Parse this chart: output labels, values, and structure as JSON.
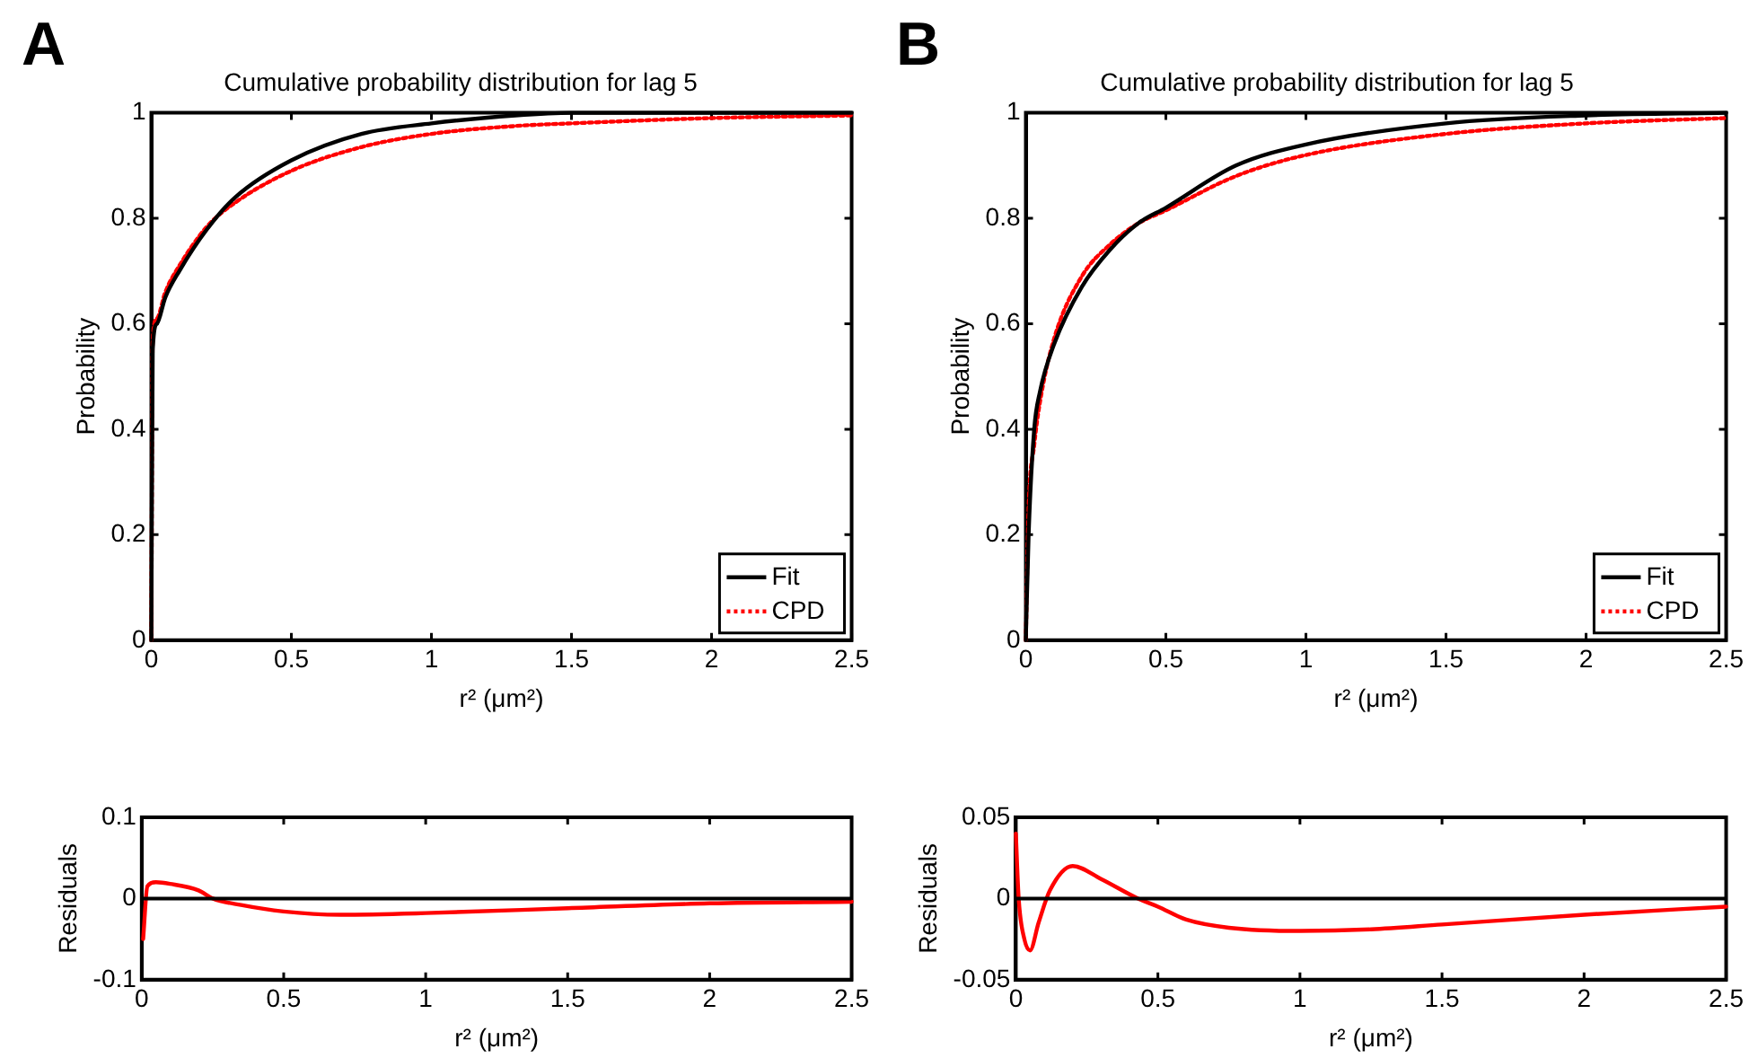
{
  "chart_data": [
    {
      "type": "line",
      "title": "Cumulative probability distribution for lag 5",
      "xlabel": "r² (μm²)",
      "ylabel": "Probability",
      "annotations": [
        "A"
      ],
      "legend": "bottom right",
      "xlim": [
        0,
        2.5
      ],
      "xticks": [
        0,
        0.5,
        1,
        1.5,
        2,
        2.5
      ],
      "ylim": [
        0,
        1
      ],
      "yticks": [
        0,
        0.2,
        0.4,
        0.6,
        0.8,
        1
      ],
      "x": [
        0,
        0.005,
        0.02,
        0.05,
        0.1,
        0.2,
        0.3,
        0.5,
        0.75,
        1.0,
        1.3,
        1.5,
        2.0,
        2.5
      ],
      "series": [
        {
          "name": "Fit",
          "color": "#000000",
          "line_style": "solid",
          "values": [
            0,
            0.55,
            0.6,
            0.65,
            0.7,
            0.78,
            0.84,
            0.91,
            0.96,
            0.98,
            0.995,
            1.0,
            1.0,
            1.0
          ]
        },
        {
          "name": "CPD",
          "color": "#ff0000",
          "line_style": "dotted",
          "values": [
            0,
            0.57,
            0.61,
            0.66,
            0.71,
            0.785,
            0.83,
            0.89,
            0.935,
            0.96,
            0.975,
            0.98,
            0.99,
            0.995
          ]
        }
      ]
    },
    {
      "type": "line",
      "title": "Cumulative probability distribution for lag 5",
      "xlabel": "r² (μm²)",
      "ylabel": "Probability",
      "annotations": [
        "B"
      ],
      "legend": "bottom right",
      "xlim": [
        0,
        2.5
      ],
      "xticks": [
        0,
        0.5,
        1,
        1.5,
        2,
        2.5
      ],
      "ylim": [
        0,
        1
      ],
      "yticks": [
        0,
        0.2,
        0.4,
        0.6,
        0.8,
        1
      ],
      "x": [
        0,
        0.01,
        0.03,
        0.05,
        0.1,
        0.2,
        0.3,
        0.4,
        0.5,
        0.75,
        1.0,
        1.5,
        2.0,
        2.5
      ],
      "series": [
        {
          "name": "Fit",
          "color": "#000000",
          "line_style": "solid",
          "values": [
            0,
            0.2,
            0.4,
            0.47,
            0.56,
            0.67,
            0.74,
            0.79,
            0.82,
            0.9,
            0.94,
            0.98,
            0.995,
            1.0
          ]
        },
        {
          "name": "CPD",
          "color": "#ff0000",
          "line_style": "dotted",
          "values": [
            0,
            0.25,
            0.37,
            0.45,
            0.57,
            0.69,
            0.75,
            0.79,
            0.815,
            0.88,
            0.92,
            0.96,
            0.98,
            0.99
          ]
        }
      ]
    },
    {
      "type": "line",
      "xlabel": "r² (μm²)",
      "ylabel": "Residuals",
      "xlim": [
        0,
        2.5
      ],
      "xticks": [
        0,
        0.5,
        1,
        1.5,
        2,
        2.5
      ],
      "ylim": [
        -0.1,
        0.1
      ],
      "yticks": [
        -0.1,
        0,
        0.1
      ],
      "ref_lines": [
        {
          "axis": "y",
          "value": 0,
          "color": "#000000"
        }
      ],
      "x": [
        0.005,
        0.02,
        0.05,
        0.1,
        0.2,
        0.25,
        0.35,
        0.5,
        0.7,
        1.0,
        1.5,
        2.0,
        2.5
      ],
      "series": [
        {
          "color": "#ff0000",
          "values": [
            -0.05,
            0.015,
            0.02,
            0.018,
            0.01,
            0,
            -0.008,
            -0.016,
            -0.02,
            -0.018,
            -0.012,
            -0.006,
            -0.004
          ]
        }
      ]
    },
    {
      "type": "line",
      "xlabel": "r² (μm²)",
      "ylabel": "Residuals",
      "xlim": [
        0,
        2.5
      ],
      "xticks": [
        0,
        0.5,
        1,
        1.5,
        2,
        2.5
      ],
      "ylim": [
        -0.05,
        0.05
      ],
      "yticks": [
        -0.05,
        0,
        0.05
      ],
      "ref_lines": [
        {
          "axis": "y",
          "value": 0,
          "color": "#000000"
        }
      ],
      "x": [
        0,
        0.01,
        0.03,
        0.05,
        0.08,
        0.12,
        0.2,
        0.3,
        0.43,
        0.5,
        0.6,
        0.75,
        1.0,
        1.25,
        1.5,
        2.0,
        2.5
      ],
      "series": [
        {
          "color": "#ff0000",
          "values": [
            0.04,
            0,
            -0.025,
            -0.032,
            -0.015,
            0.005,
            0.02,
            0.012,
            0,
            -0.005,
            -0.013,
            -0.018,
            -0.02,
            -0.019,
            -0.016,
            -0.01,
            -0.005
          ]
        }
      ]
    }
  ]
}
